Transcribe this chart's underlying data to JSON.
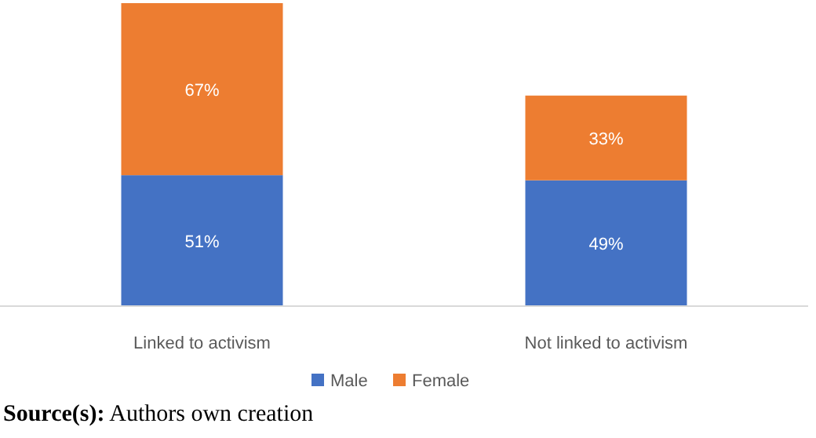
{
  "chart_data": {
    "type": "bar",
    "stacked": true,
    "categories": [
      "Linked to activism",
      "Not linked to activism"
    ],
    "series": [
      {
        "name": "Male",
        "color": "#4472c4",
        "values": [
          51,
          49
        ],
        "value_labels": [
          "51%",
          "49%"
        ]
      },
      {
        "name": "Female",
        "color": "#ed7d31",
        "values": [
          67,
          33
        ],
        "value_labels": [
          "67%",
          "33%"
        ]
      }
    ],
    "legend": "bottom",
    "annotations": [
      "Source(s): Authors own creation"
    ]
  }
}
